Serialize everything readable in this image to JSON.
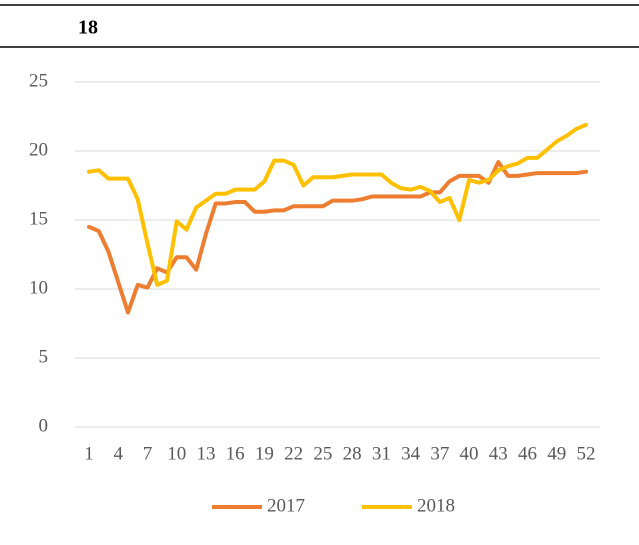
{
  "chart_data": {
    "type": "line",
    "title": "18",
    "categories": [
      "1",
      null,
      null,
      "4",
      null,
      null,
      "7",
      null,
      null,
      "10",
      null,
      null,
      "13",
      null,
      null,
      "16",
      null,
      null,
      "19",
      null,
      null,
      "22",
      null,
      null,
      "25",
      null,
      null,
      "28",
      null,
      null,
      "31",
      null,
      null,
      "34",
      null,
      null,
      "37",
      null,
      null,
      "40",
      null,
      null,
      "43",
      null,
      null,
      "46",
      null,
      null,
      "49",
      null,
      null,
      "52"
    ],
    "series": [
      {
        "name": "2017",
        "color": "#ed7d31",
        "values": [
          14.5,
          14.2,
          12.7,
          10.5,
          8.3,
          10.3,
          10.1,
          11.5,
          11.2,
          12.3,
          12.3,
          11.4,
          14,
          16.2,
          16.2,
          16.3,
          16.3,
          15.6,
          15.6,
          15.7,
          15.7,
          16,
          16,
          16,
          16,
          16.4,
          16.4,
          16.4,
          16.5,
          16.7,
          16.7,
          16.7,
          16.7,
          16.7,
          16.7,
          17,
          17,
          17.8,
          18.2,
          18.2,
          18.2,
          17.7,
          19.2,
          18.2,
          18.2,
          18.3,
          18.4,
          18.4,
          18.4,
          18.4,
          18.4,
          18.5
        ]
      },
      {
        "name": "2018",
        "color": "#ffc000",
        "values": [
          18.5,
          18.6,
          18,
          18,
          18,
          16.5,
          13.3,
          10.3,
          10.6,
          14.9,
          14.3,
          15.9,
          16.4,
          16.9,
          16.9,
          17.2,
          17.2,
          17.2,
          17.8,
          19.3,
          19.3,
          19,
          17.5,
          18.1,
          18.1,
          18.1,
          18.2,
          18.3,
          18.3,
          18.3,
          18.3,
          17.7,
          17.3,
          17.2,
          17.4,
          17.1,
          16.3,
          16.6,
          15,
          17.9,
          17.7,
          17.9,
          18.6,
          18.9,
          19.1,
          19.5,
          19.5,
          20.1,
          20.7,
          21.1,
          21.6,
          21.9
        ]
      }
    ],
    "ylim": [
      0,
      25
    ],
    "yticks": [
      0,
      5,
      10,
      15,
      20,
      25
    ],
    "grid": true
  }
}
